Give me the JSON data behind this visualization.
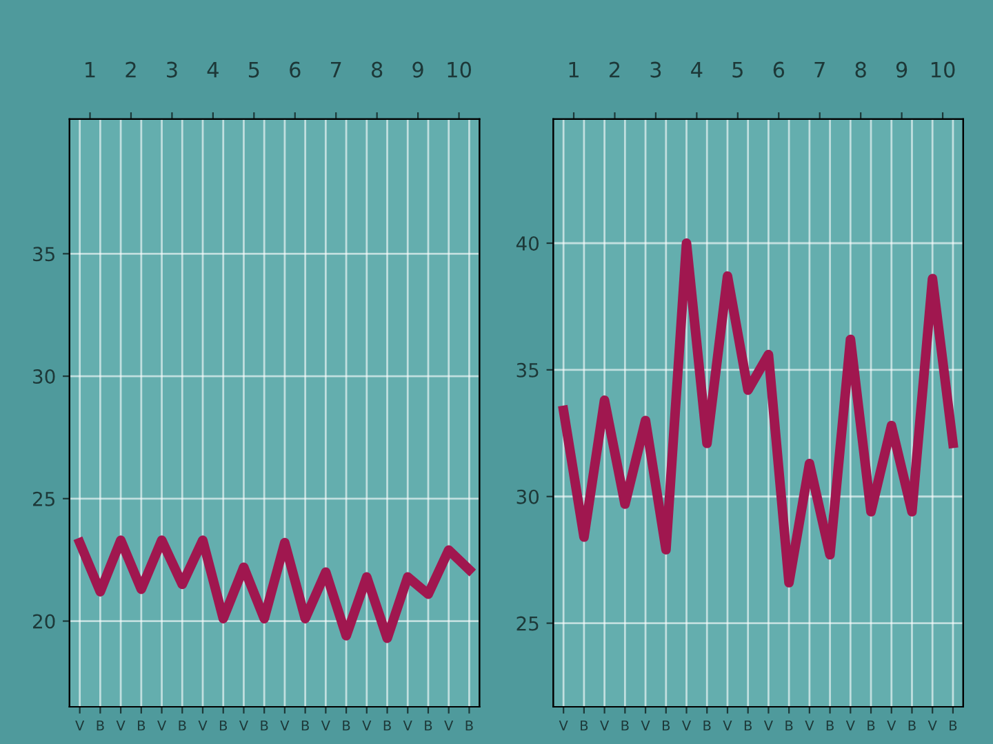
{
  "chart_data": [
    {
      "type": "line",
      "categories": [
        "V",
        "B",
        "V",
        "B",
        "V",
        "B",
        "V",
        "B",
        "V",
        "B",
        "V",
        "B",
        "V",
        "B",
        "V",
        "B",
        "V",
        "B",
        "V",
        "B"
      ],
      "x2lim": [
        0.5,
        10.5
      ],
      "x2ticks": [
        1,
        2,
        3,
        4,
        5,
        6,
        7,
        8,
        9,
        10
      ],
      "ylim": [
        16.5,
        40.5
      ],
      "yticks": [
        20,
        25,
        30,
        35
      ],
      "grid": true,
      "series": [
        {
          "color": "#a0174f",
          "values": [
            23.2,
            21.2,
            23.3,
            21.3,
            23.3,
            21.5,
            23.3,
            20.1,
            22.2,
            20.1,
            23.2,
            20.1,
            22.0,
            19.4,
            21.8,
            19.3,
            21.8,
            21.1,
            22.9,
            22.1
          ]
        }
      ]
    },
    {
      "type": "line",
      "categories": [
        "V",
        "B",
        "V",
        "B",
        "V",
        "B",
        "V",
        "B",
        "V",
        "B",
        "V",
        "B",
        "V",
        "B",
        "V",
        "B",
        "V",
        "B",
        "V",
        "B"
      ],
      "x2lim": [
        0.5,
        10.5
      ],
      "x2ticks": [
        1,
        2,
        3,
        4,
        5,
        6,
        7,
        8,
        9,
        10
      ],
      "ylim": [
        21.7,
        44.9
      ],
      "yticks": [
        25,
        30,
        35,
        40
      ],
      "grid": true,
      "series": [
        {
          "color": "#a0174f",
          "values": [
            33.4,
            28.4,
            33.8,
            29.7,
            33.0,
            27.9,
            40.0,
            32.1,
            38.7,
            34.2,
            35.6,
            26.6,
            31.3,
            27.7,
            36.2,
            29.4,
            32.8,
            29.4,
            38.6,
            32.1
          ]
        }
      ]
    }
  ]
}
